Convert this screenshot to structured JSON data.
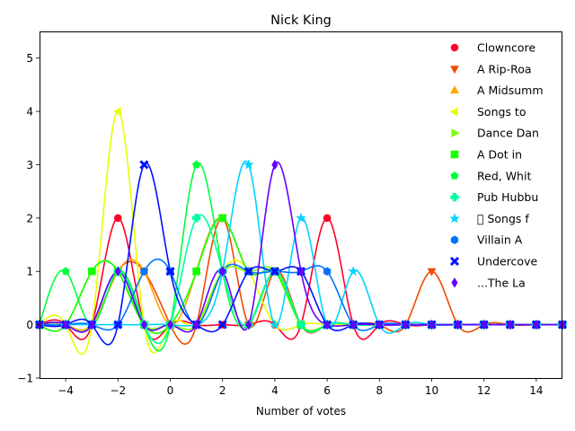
{
  "chart_data": {
    "type": "line",
    "title": "Nick King",
    "xlabel": "Number of votes",
    "ylabel": "",
    "xlim": [
      -5,
      15
    ],
    "ylim": [
      -1,
      5.5
    ],
    "xticks": [
      -4,
      -2,
      0,
      2,
      4,
      6,
      8,
      10,
      12,
      14
    ],
    "yticks": [
      -1,
      0,
      1,
      2,
      3,
      4,
      5
    ],
    "legend_position": "top-right",
    "grid": false,
    "x": [
      -5,
      -4,
      -3,
      -2,
      -1,
      0,
      1,
      2,
      3,
      4,
      5,
      6,
      7,
      8,
      9,
      10,
      11,
      12,
      13,
      14,
      15
    ],
    "series": [
      {
        "name": "Clowncore",
        "color": "#ff0029",
        "marker": "circle",
        "values": [
          0,
          0,
          0,
          2,
          0,
          0,
          0,
          0,
          0,
          0,
          0,
          2,
          0,
          0,
          0,
          0,
          0,
          0,
          0,
          0,
          0
        ]
      },
      {
        "name": "A Rip-Roa",
        "color": "#f04a00",
        "marker": "triangle-down",
        "values": [
          0,
          0,
          0,
          1,
          1,
          0,
          0,
          2,
          0,
          1,
          0,
          0,
          0,
          0,
          0,
          1,
          0,
          0,
          0,
          0,
          0
        ]
      },
      {
        "name": "A Midsumm",
        "color": "#ffa500",
        "marker": "triangle-up",
        "values": [
          0,
          0,
          0,
          1,
          1,
          0,
          1,
          2,
          1,
          1,
          0,
          0,
          0,
          0,
          0,
          0,
          0,
          0,
          0,
          0,
          0
        ]
      },
      {
        "name": "Songs to",
        "color": "#e8ff00",
        "marker": "triangle-left",
        "values": [
          0,
          0,
          0,
          4,
          0,
          0,
          0,
          1,
          1,
          0,
          0,
          0,
          0,
          0,
          0,
          0,
          0,
          0,
          0,
          0,
          0
        ]
      },
      {
        "name": "Dance Dan",
        "color": "#7aff00",
        "marker": "triangle-right",
        "values": [
          0,
          0,
          1,
          1,
          0,
          0,
          0,
          1,
          1,
          1,
          0,
          0,
          0,
          0,
          0,
          0,
          0,
          0,
          0,
          0,
          0
        ]
      },
      {
        "name": "A Dot in",
        "color": "#17ff00",
        "marker": "square",
        "values": [
          0,
          0,
          1,
          1,
          0,
          0,
          1,
          2,
          1,
          1,
          0,
          0,
          0,
          0,
          0,
          0,
          0,
          0,
          0,
          0,
          0
        ]
      },
      {
        "name": "Red, Whit",
        "color": "#00ff3c",
        "marker": "pentagon",
        "values": [
          0,
          1,
          0,
          1,
          0,
          0,
          3,
          1,
          0,
          1,
          0,
          0,
          0,
          0,
          0,
          0,
          0,
          0,
          0,
          0,
          0
        ]
      },
      {
        "name": "Pub Hubbu",
        "color": "#00ff9e",
        "marker": "plus",
        "values": [
          0,
          0,
          0,
          1,
          0,
          0,
          2,
          1,
          0,
          1,
          0,
          0,
          0,
          0,
          0,
          0,
          0,
          0,
          0,
          0,
          0
        ]
      },
      {
        "name": "\u0000 Songs f",
        "color": "#00d4ff",
        "marker": "star",
        "values": [
          0,
          0,
          0,
          0,
          0,
          0,
          0,
          1,
          3,
          0,
          2,
          0,
          1,
          0,
          0,
          0,
          0,
          0,
          0,
          0,
          0
        ]
      },
      {
        "name": "Villain A",
        "color": "#0073ff",
        "marker": "hexagon",
        "values": [
          0,
          0,
          0,
          0,
          1,
          1,
          0,
          1,
          1,
          1,
          1,
          1,
          0,
          0,
          0,
          0,
          0,
          0,
          0,
          0,
          0
        ]
      },
      {
        "name": "Undercove",
        "color": "#0011ff",
        "marker": "x",
        "values": [
          0,
          0,
          0,
          0,
          3,
          1,
          0,
          0,
          1,
          1,
          1,
          0,
          0,
          0,
          0,
          0,
          0,
          0,
          0,
          0,
          0
        ]
      },
      {
        "name": "...The La",
        "color": "#6600ff",
        "marker": "diamond",
        "values": [
          0,
          0,
          0,
          1,
          0,
          0,
          0,
          1,
          0,
          3,
          1,
          0,
          0,
          0,
          0,
          0,
          0,
          0,
          0,
          0,
          0
        ]
      }
    ]
  }
}
